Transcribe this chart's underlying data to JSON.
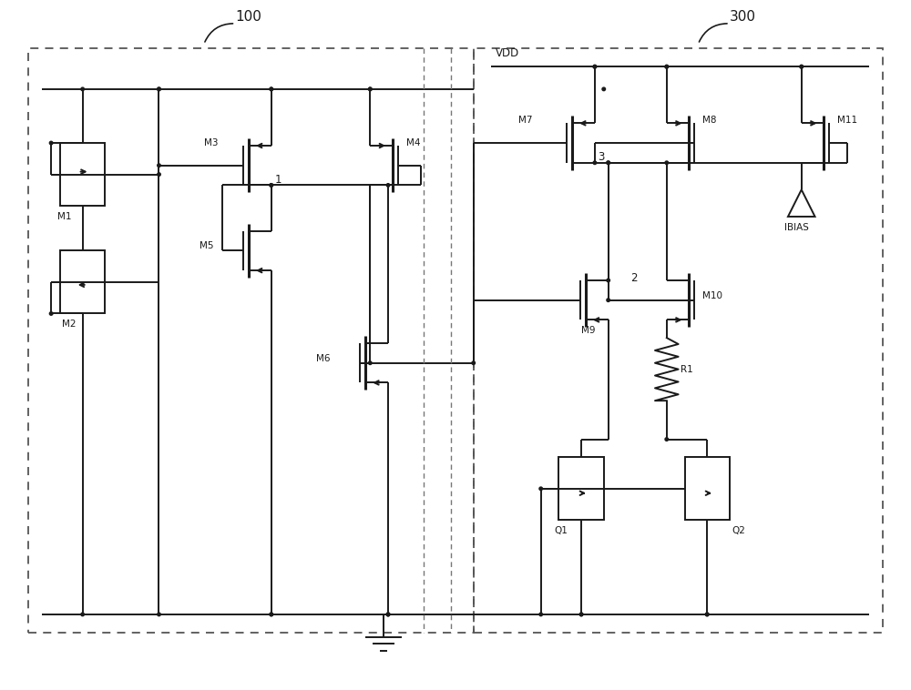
{
  "fig_width": 10.0,
  "fig_height": 7.58,
  "bg_color": "#ffffff",
  "line_color": "#1a1a1a",
  "lw": 1.4,
  "lw_thick": 2.2,
  "dot_r": 0.18,
  "label_100": "100",
  "label_300": "300",
  "label_VDD": "VDD",
  "label_IBIAS": "IBIAS",
  "mosfets": [
    "M1",
    "M2",
    "M3",
    "M4",
    "M5",
    "M6",
    "M7",
    "M8",
    "M9",
    "M10",
    "M11"
  ],
  "bjts": [
    "Q1",
    "Q2"
  ],
  "resistors": [
    "R1"
  ],
  "node_numbers": [
    "1",
    "2",
    "3"
  ]
}
